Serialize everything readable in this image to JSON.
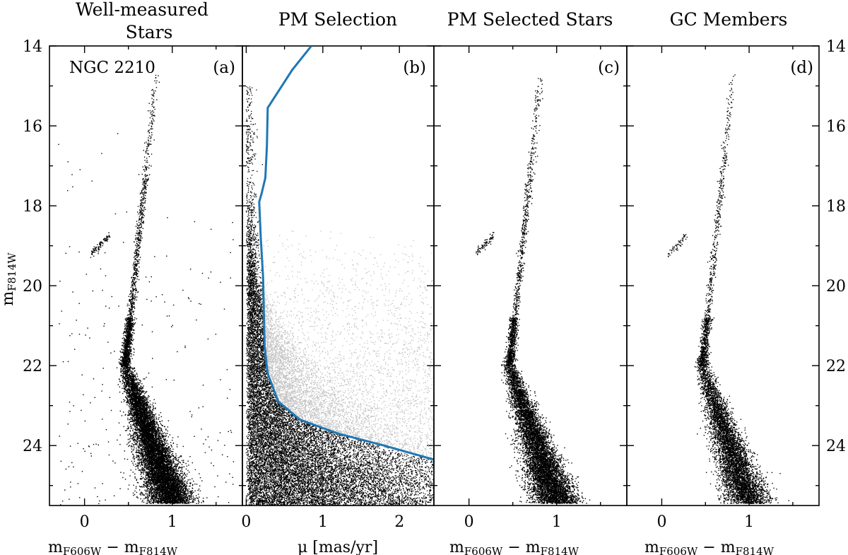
{
  "chart_data": [
    {
      "type": "scatter",
      "panel_id": "a",
      "title_lines": [
        "Well-measured",
        "Stars"
      ],
      "panel_label": "(a)",
      "annotation": "NGC 2210",
      "xlabel": "mF606W − mF814W",
      "ylabel": "mF814W",
      "x_tick_labels": [
        "0",
        "1"
      ],
      "x_ticks": [
        0,
        1
      ],
      "xlim": [
        -0.4,
        1.8
      ],
      "ylim": [
        25.5,
        14
      ],
      "y_ticks": [
        14,
        16,
        18,
        20,
        22,
        24
      ],
      "y_tick_labels": [
        "14",
        "16",
        "18",
        "20",
        "22",
        "24"
      ],
      "series": [
        {
          "color": "#000000",
          "density": 1.0,
          "components": [
            "rgb",
            "hb",
            "ms",
            "field"
          ]
        }
      ]
    },
    {
      "type": "scatter",
      "panel_id": "b",
      "title_lines": [
        "PM Selection"
      ],
      "panel_label": "(b)",
      "xlabel": "μ [mas/yr]",
      "x_tick_labels": [
        "0",
        "1",
        "2"
      ],
      "x_ticks": [
        0,
        1,
        2
      ],
      "xlim": [
        -0.05,
        2.45
      ],
      "ylim": [
        25.5,
        14
      ],
      "y_ticks": [
        14,
        16,
        18,
        20,
        22,
        24
      ],
      "series": [
        {
          "color": "#000000",
          "role": "selected"
        },
        {
          "color": "#c0c0c0",
          "role": "rejected"
        }
      ],
      "selection_curve": {
        "color": "#1f77b4",
        "x": [
          0.85,
          0.6,
          0.28,
          0.27,
          0.25,
          0.2,
          0.17,
          0.19,
          0.22,
          0.23,
          0.24,
          0.28,
          0.42,
          0.7,
          1.2,
          1.8,
          2.45
        ],
        "y": [
          14.0,
          14.6,
          15.55,
          16.5,
          17.3,
          17.7,
          17.9,
          18.8,
          19.8,
          20.7,
          21.5,
          22.2,
          22.9,
          23.35,
          23.7,
          24.0,
          24.35
        ]
      }
    },
    {
      "type": "scatter",
      "panel_id": "c",
      "title_lines": [
        "PM Selected Stars"
      ],
      "panel_label": "(c)",
      "xlabel": "mF606W − mF814W",
      "x_tick_labels": [
        "0",
        "1"
      ],
      "x_ticks": [
        0,
        1
      ],
      "xlim": [
        -0.4,
        1.8
      ],
      "ylim": [
        25.5,
        14
      ],
      "y_ticks": [
        14,
        16,
        18,
        20,
        22,
        24
      ],
      "series": [
        {
          "color": "#000000",
          "density": 0.8,
          "components": [
            "rgb",
            "hb",
            "ms"
          ]
        }
      ]
    },
    {
      "type": "scatter",
      "panel_id": "d",
      "title_lines": [
        "GC Members"
      ],
      "panel_label": "(d)",
      "xlabel": "mF606W − mF814W",
      "x_tick_labels": [
        "0",
        "1"
      ],
      "x_ticks": [
        0,
        1
      ],
      "xlim": [
        -0.4,
        1.8
      ],
      "ylim": [
        25.5,
        14
      ],
      "y_ticks": [
        14,
        16,
        18,
        20,
        22,
        24
      ],
      "y_tick_labels": [
        "14",
        "16",
        "18",
        "20",
        "22",
        "24"
      ],
      "series": [
        {
          "color": "#000000",
          "density": 0.6,
          "components": [
            "rgb",
            "hb",
            "ms"
          ]
        }
      ]
    }
  ]
}
